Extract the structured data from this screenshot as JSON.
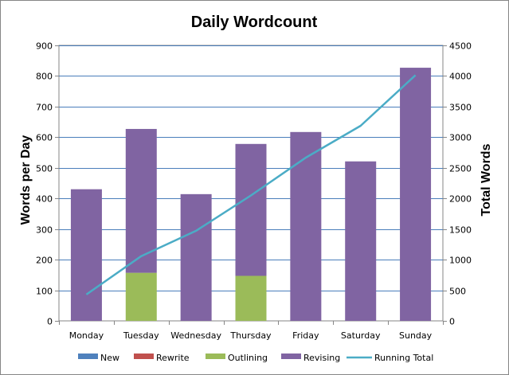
{
  "chart_data": {
    "type": "bar",
    "stacked": true,
    "title": "Daily Wordcount",
    "ylabel": "Words per Day",
    "y2label": "Total Words",
    "categories": [
      "Monday",
      "Tuesday",
      "Wednesday",
      "Thursday",
      "Friday",
      "Saturday",
      "Sunday"
    ],
    "ylim": [
      0,
      900
    ],
    "yticks": [
      0,
      100,
      200,
      300,
      400,
      500,
      600,
      700,
      800,
      900
    ],
    "y2lim": [
      0,
      4500
    ],
    "y2ticks": [
      0,
      500,
      1000,
      1500,
      2000,
      2500,
      3000,
      3500,
      4000,
      4500
    ],
    "grid": true,
    "legend_position": "bottom",
    "series": [
      {
        "name": "New",
        "kind": "bar",
        "color": "#4f81bd",
        "values": [
          0,
          0,
          0,
          0,
          0,
          0,
          0
        ]
      },
      {
        "name": "Rewrite",
        "kind": "bar",
        "color": "#c0504d",
        "values": [
          0,
          0,
          0,
          0,
          0,
          0,
          0
        ]
      },
      {
        "name": "Outlining",
        "kind": "bar",
        "color": "#9bbb59",
        "values": [
          0,
          157,
          0,
          147,
          0,
          0,
          0
        ]
      },
      {
        "name": "Revising",
        "kind": "bar",
        "color": "#8064a2",
        "values": [
          430,
          470,
          414,
          431,
          617,
          521,
          827
        ]
      },
      {
        "name": "Running Total",
        "kind": "line",
        "axis": "y2",
        "color": "#4bacc6",
        "values": [
          430,
          1057,
          1471,
          2049,
          2666,
          3187,
          4014
        ]
      }
    ]
  }
}
